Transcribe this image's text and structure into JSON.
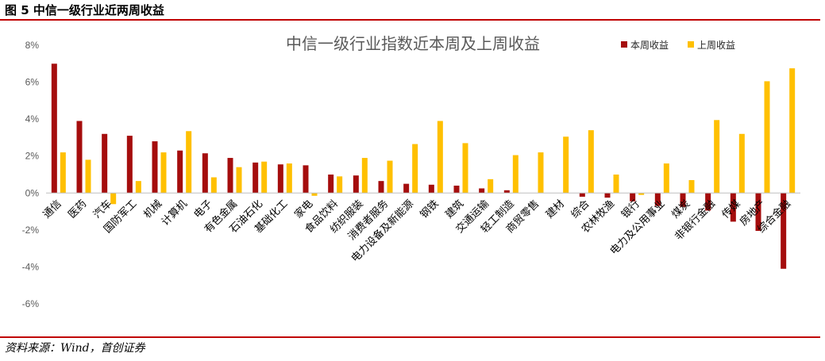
{
  "figure": {
    "caption": "图 5  中信一级行业近两周收益",
    "source": "资料来源：Wind，首创证券"
  },
  "colors": {
    "this_week": "#a50d0d",
    "last_week": "#ffc000",
    "rule": "#c00000"
  },
  "chart_data": {
    "type": "bar",
    "title": "中信一级行业指数近本周及上周收益",
    "xlabel": "",
    "ylabel": "",
    "ylim": [
      -6,
      8
    ],
    "yticks": [
      "8%",
      "6%",
      "4%",
      "2%",
      "0%",
      "-2%",
      "-4%",
      "-6%"
    ],
    "ytick_values": [
      8,
      6,
      4,
      2,
      0,
      -2,
      -4,
      -6
    ],
    "legend_position": "top-right",
    "grid": false,
    "categories": [
      "通信",
      "医药",
      "汽车",
      "国防军工",
      "机械",
      "计算机",
      "电子",
      "有色金属",
      "石油石化",
      "基础化工",
      "家电",
      "食品饮料",
      "纺织服装",
      "消费者服务",
      "电力设备及新能源",
      "钢铁",
      "建筑",
      "交通运输",
      "轻工制造",
      "商贸零售",
      "建材",
      "综合",
      "农林牧渔",
      "银行",
      "电力及公用事业",
      "煤炭",
      "非银行金融",
      "传媒",
      "房地产",
      "综合金融"
    ],
    "series": [
      {
        "name": "本周收益",
        "values": [
          7.0,
          3.9,
          3.2,
          3.1,
          2.8,
          2.3,
          2.15,
          1.9,
          1.65,
          1.55,
          1.5,
          1.0,
          0.95,
          0.65,
          0.5,
          0.45,
          0.4,
          0.25,
          0.15,
          0.0,
          0.0,
          -0.2,
          -0.25,
          -0.45,
          -0.7,
          -0.75,
          -0.95,
          -1.55,
          -2.05,
          -4.1
        ]
      },
      {
        "name": "上周收益",
        "values": [
          2.2,
          1.8,
          -0.6,
          0.65,
          2.2,
          3.35,
          0.85,
          1.4,
          1.7,
          1.6,
          -0.15,
          0.9,
          1.9,
          1.75,
          2.65,
          3.9,
          2.7,
          0.75,
          2.05,
          2.2,
          3.05,
          3.4,
          1.0,
          -0.1,
          1.6,
          0.7,
          3.95,
          3.2,
          6.05,
          6.75
        ]
      }
    ]
  }
}
